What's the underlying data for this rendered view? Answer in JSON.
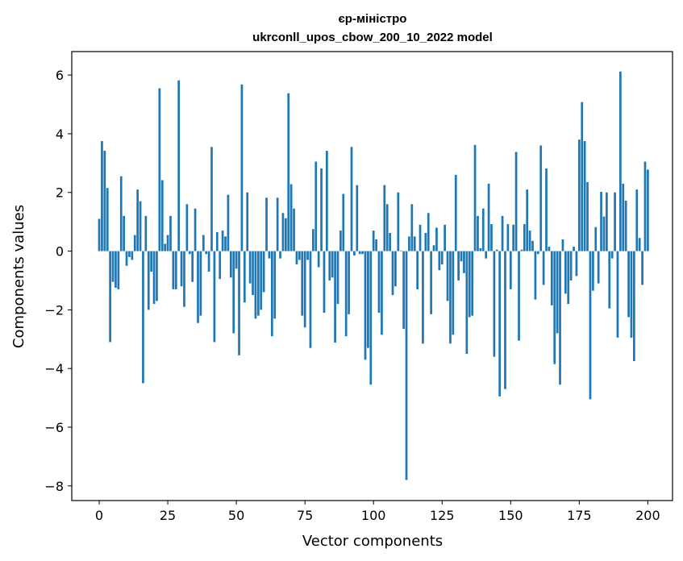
{
  "chart_data": {
    "type": "bar",
    "title_line1": "єр-міністро",
    "title_line2": "ukrconll_upos_cbow_200_10_2022 model",
    "xlabel": "Vector components",
    "ylabel": "Components values",
    "xlim": [
      -10,
      209
    ],
    "ylim": [
      -8.5,
      6.8
    ],
    "x_ticks": [
      0,
      25,
      50,
      75,
      100,
      125,
      150,
      175,
      200
    ],
    "x_tick_labels": [
      "0",
      "25",
      "50",
      "75",
      "100",
      "125",
      "150",
      "175",
      "200"
    ],
    "y_ticks": [
      -8,
      -6,
      -4,
      -2,
      0,
      2,
      4,
      6
    ],
    "y_tick_labels": [
      "−8",
      "−6",
      "−4",
      "−2",
      "0",
      "2",
      "4",
      "6"
    ],
    "bar_color": "#1f77b4",
    "grid": false,
    "values": [
      1.1,
      3.75,
      3.42,
      2.15,
      -3.1,
      -1.05,
      -1.25,
      -1.3,
      2.55,
      1.2,
      -0.5,
      -0.2,
      -0.3,
      0.55,
      2.1,
      1.7,
      -4.5,
      1.2,
      -2.0,
      -0.7,
      -1.8,
      -1.7,
      5.55,
      2.42,
      0.25,
      0.55,
      1.2,
      -1.3,
      -1.3,
      5.82,
      -1.2,
      -1.9,
      1.6,
      -0.1,
      -1.05,
      1.45,
      -2.45,
      -2.2,
      0.55,
      -0.1,
      -0.7,
      3.55,
      -3.1,
      0.65,
      -0.95,
      0.7,
      0.5,
      1.92,
      -0.9,
      -2.8,
      -0.6,
      -3.55,
      5.68,
      -1.75,
      2.0,
      -1.1,
      -1.5,
      -2.3,
      -2.2,
      -2.0,
      -1.4,
      1.82,
      -0.25,
      -2.9,
      -2.3,
      1.82,
      -0.25,
      1.3,
      1.12,
      5.38,
      2.28,
      1.45,
      -0.45,
      -0.3,
      -2.2,
      -2.6,
      -0.3,
      -3.3,
      0.75,
      3.05,
      -0.55,
      2.82,
      -2.1,
      3.42,
      -1.0,
      -0.9,
      -3.12,
      -1.8,
      0.7,
      1.95,
      -2.9,
      -2.15,
      3.55,
      -0.15,
      2.25,
      -0.1,
      -0.1,
      -3.7,
      -3.3,
      -4.55,
      0.7,
      0.4,
      -2.1,
      -2.85,
      2.25,
      1.6,
      0.62,
      -1.5,
      -1.2,
      2.0,
      0.02,
      -2.65,
      -7.8,
      0.5,
      1.6,
      0.5,
      -1.3,
      0.9,
      -3.15,
      0.62,
      1.3,
      -2.15,
      0.2,
      0.8,
      -0.65,
      -0.45,
      0.9,
      -1.7,
      -3.15,
      -2.85,
      2.6,
      -1.0,
      -0.35,
      -0.75,
      -3.5,
      -2.25,
      -2.2,
      3.62,
      1.2,
      0.1,
      1.45,
      -0.25,
      2.3,
      0.92,
      -3.6,
      0.05,
      -4.95,
      1.2,
      -4.7,
      0.92,
      -1.3,
      0.9,
      3.38,
      -3.05,
      0.05,
      0.92,
      2.1,
      0.7,
      0.35,
      -1.65,
      -0.1,
      3.6,
      -1.15,
      2.82,
      0.15,
      -1.85,
      -3.85,
      -2.8,
      -4.55,
      0.4,
      -1.45,
      -1.8,
      -1.0,
      0.15,
      -0.85,
      3.8,
      5.08,
      3.75,
      2.35,
      -5.05,
      -1.35,
      0.82,
      -1.1,
      2.02,
      1.18,
      2.0,
      -1.95,
      -0.25,
      2.0,
      -2.95,
      6.12,
      2.3,
      1.72,
      -2.25,
      -2.95,
      -3.75,
      2.1,
      0.45,
      -1.15,
      3.05,
      2.78
    ]
  }
}
